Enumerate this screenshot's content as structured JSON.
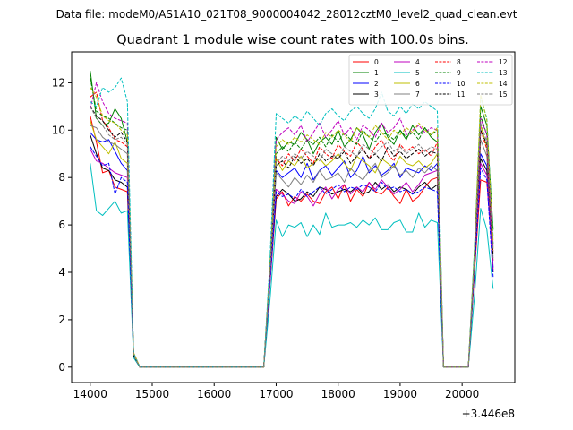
{
  "suptitle": "Data file: modeM0/AS1A10_021T08_9000004042_28012cztM0_level2_quad_clean.evt",
  "chart_data": {
    "type": "line",
    "title": "Quadrant 1 module wise count rates with 100.0s bins.",
    "xlabel": "",
    "ylabel": "",
    "x_offset_label": "+3.446e8",
    "xlim": [
      13700,
      20850
    ],
    "ylim": [
      -0.65,
      13.3
    ],
    "xticks": [
      14000,
      15000,
      16000,
      17000,
      18000,
      19000,
      20000
    ],
    "xtick_labels": [
      "14000",
      "15000",
      "16000",
      "17000",
      "18000",
      "19000",
      "20000"
    ],
    "yticks": [
      0,
      2,
      4,
      6,
      8,
      10,
      12
    ],
    "ytick_labels": [
      "0",
      "2",
      "4",
      "6",
      "8",
      "10",
      "12"
    ],
    "legend_position": "top-right",
    "legend_columns": 4,
    "x": [
      14000,
      14100,
      14200,
      14300,
      14400,
      14500,
      14600,
      14700,
      14800,
      14900,
      15000,
      15100,
      15200,
      15300,
      15400,
      15500,
      15600,
      15700,
      15800,
      15900,
      16000,
      16100,
      16200,
      16300,
      16400,
      16500,
      16600,
      16700,
      16800,
      16900,
      17000,
      17100,
      17200,
      17300,
      17400,
      17500,
      17600,
      17700,
      17800,
      17900,
      18000,
      18100,
      18200,
      18300,
      18400,
      18500,
      18600,
      18700,
      18800,
      18900,
      19000,
      19100,
      19200,
      19300,
      19400,
      19500,
      19600,
      19700,
      19800,
      19900,
      20000,
      20100,
      20200,
      20300,
      20400,
      20500
    ],
    "series": [
      {
        "name": "0",
        "color": "#ff0000",
        "dashed": false,
        "values": [
          10.6,
          9.5,
          8.2,
          8.3,
          7.6,
          7.5,
          7.4,
          0.5,
          0,
          0,
          0,
          0,
          0,
          0,
          0,
          0,
          0,
          0,
          0,
          0,
          0,
          0,
          0,
          0,
          0,
          0,
          0,
          0,
          0,
          3.5,
          7.1,
          7.4,
          6.8,
          7.2,
          7.0,
          7.3,
          7.0,
          6.9,
          7.4,
          7.6,
          7.1,
          7.7,
          7.0,
          7.5,
          7.2,
          7.8,
          7.4,
          7.3,
          7.6,
          7.2,
          6.9,
          7.5,
          7.0,
          7.2,
          7.6,
          7.9,
          8.0,
          0,
          0,
          0,
          0,
          0,
          4.0,
          7.9,
          7.8,
          4.5
        ]
      },
      {
        "name": "1",
        "color": "#008000",
        "dashed": false,
        "values": [
          12.5,
          10.5,
          10.2,
          10.3,
          10.9,
          10.5,
          9.5,
          0.6,
          0,
          0,
          0,
          0,
          0,
          0,
          0,
          0,
          0,
          0,
          0,
          0,
          0,
          0,
          0,
          0,
          0,
          0,
          0,
          0,
          0,
          4.2,
          9.7,
          9.2,
          9.5,
          9.4,
          9.9,
          9.6,
          9.0,
          9.5,
          9.7,
          9.4,
          10.0,
          9.3,
          9.6,
          10.1,
          9.8,
          9.2,
          9.9,
          10.3,
          9.7,
          9.4,
          10.0,
          9.6,
          10.2,
          9.8,
          10.1,
          9.7,
          9.5,
          0,
          0,
          0,
          0,
          0,
          5.0,
          11.0,
          10.2,
          5.8
        ]
      },
      {
        "name": "2",
        "color": "#0000ff",
        "dashed": false,
        "values": [
          9.9,
          9.6,
          9.5,
          9.6,
          9.1,
          8.6,
          8.3,
          0.5,
          0,
          0,
          0,
          0,
          0,
          0,
          0,
          0,
          0,
          0,
          0,
          0,
          0,
          0,
          0,
          0,
          0,
          0,
          0,
          0,
          0,
          3.8,
          8.3,
          8.0,
          8.2,
          8.4,
          8.0,
          8.6,
          7.9,
          8.3,
          8.5,
          8.1,
          8.4,
          8.7,
          8.0,
          8.3,
          8.9,
          8.2,
          8.5,
          8.1,
          8.3,
          8.6,
          8.0,
          8.4,
          8.3,
          8.2,
          8.5,
          8.3,
          8.6,
          0,
          0,
          0,
          0,
          0,
          4.5,
          9.0,
          8.5,
          4.2
        ]
      },
      {
        "name": "3",
        "color": "#000000",
        "dashed": false,
        "values": [
          9.8,
          9.0,
          8.4,
          8.3,
          7.9,
          7.8,
          7.6,
          0.5,
          0,
          0,
          0,
          0,
          0,
          0,
          0,
          0,
          0,
          0,
          0,
          0,
          0,
          0,
          0,
          0,
          0,
          0,
          0,
          0,
          0,
          3.6,
          7.2,
          7.5,
          7.3,
          7.0,
          7.1,
          7.4,
          7.2,
          7.6,
          7.5,
          7.3,
          7.4,
          7.5,
          7.4,
          7.6,
          7.3,
          7.4,
          7.8,
          7.5,
          7.7,
          7.4,
          7.6,
          7.5,
          7.3,
          7.6,
          7.8,
          7.5,
          7.7,
          0,
          0,
          0,
          0,
          0,
          4.2,
          8.8,
          8.3,
          4.0
        ]
      },
      {
        "name": "4",
        "color": "#bf00bf",
        "dashed": false,
        "values": [
          9.2,
          8.7,
          8.6,
          8.4,
          8.2,
          8.1,
          8.0,
          0.5,
          0,
          0,
          0,
          0,
          0,
          0,
          0,
          0,
          0,
          0,
          0,
          0,
          0,
          0,
          0,
          0,
          0,
          0,
          0,
          0,
          0,
          3.5,
          7.5,
          7.3,
          7.0,
          6.9,
          7.4,
          7.2,
          6.8,
          7.3,
          7.6,
          7.1,
          7.5,
          7.7,
          7.3,
          7.6,
          7.4,
          7.8,
          7.5,
          7.9,
          7.6,
          7.3,
          7.5,
          7.8,
          7.4,
          7.7,
          8.1,
          8.2,
          8.3,
          0,
          0,
          0,
          0,
          0,
          4.3,
          8.6,
          8.1,
          4.1
        ]
      },
      {
        "name": "5",
        "color": "#00bfbf",
        "dashed": false,
        "values": [
          8.6,
          6.6,
          6.4,
          6.7,
          7.0,
          6.5,
          6.6,
          0.4,
          0,
          0,
          0,
          0,
          0,
          0,
          0,
          0,
          0,
          0,
          0,
          0,
          0,
          0,
          0,
          0,
          0,
          0,
          0,
          0,
          0,
          2.8,
          6.2,
          5.5,
          6.0,
          5.9,
          6.1,
          5.5,
          6.0,
          5.6,
          6.5,
          5.9,
          6.0,
          6.0,
          6.1,
          5.9,
          6.2,
          6.0,
          6.3,
          5.8,
          5.8,
          6.1,
          6.2,
          5.7,
          5.7,
          6.5,
          5.9,
          6.2,
          6.1,
          0,
          0,
          0,
          0,
          0,
          3.0,
          6.7,
          5.8,
          3.3
        ]
      },
      {
        "name": "6",
        "color": "#bfbf00",
        "dashed": false,
        "values": [
          10.4,
          9.6,
          9.3,
          9.0,
          9.5,
          8.8,
          8.6,
          0.5,
          0,
          0,
          0,
          0,
          0,
          0,
          0,
          0,
          0,
          0,
          0,
          0,
          0,
          0,
          0,
          0,
          0,
          0,
          0,
          0,
          0,
          3.9,
          8.8,
          8.3,
          8.7,
          8.5,
          8.9,
          8.4,
          8.6,
          8.8,
          8.5,
          8.7,
          9.0,
          8.6,
          8.3,
          8.9,
          8.7,
          8.5,
          8.2,
          8.8,
          8.6,
          8.4,
          8.9,
          8.6,
          8.5,
          8.7,
          8.4,
          8.6,
          9.0,
          0,
          0,
          0,
          0,
          0,
          4.5,
          10.2,
          9.3,
          5.0
        ]
      },
      {
        "name": "7",
        "color": "#808080",
        "dashed": false,
        "values": [
          10.2,
          10.1,
          9.7,
          9.5,
          9.4,
          9.2,
          9.0,
          0.5,
          0,
          0,
          0,
          0,
          0,
          0,
          0,
          0,
          0,
          0,
          0,
          0,
          0,
          0,
          0,
          0,
          0,
          0,
          0,
          0,
          0,
          3.8,
          8.2,
          7.9,
          7.6,
          8.0,
          7.7,
          8.1,
          7.8,
          8.3,
          7.9,
          8.0,
          8.2,
          7.8,
          8.4,
          8.1,
          7.9,
          8.3,
          8.6,
          8.0,
          8.2,
          8.5,
          8.1,
          8.3,
          8.0,
          8.4,
          8.2,
          8.5,
          8.3,
          0,
          0,
          0,
          0,
          0,
          4.3,
          9.6,
          8.9,
          4.6
        ]
      },
      {
        "name": "8",
        "color": "#ff0000",
        "dashed": true,
        "values": [
          11.4,
          11.6,
          10.4,
          10.1,
          9.6,
          9.5,
          9.3,
          0.6,
          0,
          0,
          0,
          0,
          0,
          0,
          0,
          0,
          0,
          0,
          0,
          0,
          0,
          0,
          0,
          0,
          0,
          0,
          0,
          0,
          0,
          4.0,
          8.8,
          8.5,
          9.0,
          8.7,
          9.2,
          8.9,
          8.6,
          9.3,
          9.0,
          8.8,
          9.4,
          9.1,
          8.9,
          9.5,
          9.2,
          8.8,
          9.3,
          9.6,
          9.0,
          8.7,
          9.4,
          9.1,
          9.3,
          9.0,
          9.2,
          8.9,
          9.5,
          0,
          0,
          0,
          0,
          0,
          4.4,
          10.0,
          9.2,
          4.8
        ]
      },
      {
        "name": "9",
        "color": "#008000",
        "dashed": true,
        "values": [
          12.2,
          10.8,
          10.6,
          10.5,
          10.3,
          10.1,
          10.0,
          0.6,
          0,
          0,
          0,
          0,
          0,
          0,
          0,
          0,
          0,
          0,
          0,
          0,
          0,
          0,
          0,
          0,
          0,
          0,
          0,
          0,
          0,
          4.3,
          9.0,
          9.3,
          9.1,
          9.5,
          9.2,
          9.6,
          9.4,
          9.7,
          9.3,
          9.8,
          9.5,
          9.9,
          9.6,
          9.4,
          10.0,
          9.7,
          9.5,
          9.9,
          9.8,
          9.6,
          10.0,
          9.7,
          9.9,
          9.6,
          10.1,
          9.8,
          10.0,
          0,
          0,
          0,
          0,
          0,
          4.7,
          10.6,
          9.8,
          5.2
        ]
      },
      {
        "name": "10",
        "color": "#0000ff",
        "dashed": true,
        "values": [
          9.3,
          8.9,
          8.5,
          8.6,
          7.3,
          8.0,
          7.8,
          0.5,
          0,
          0,
          0,
          0,
          0,
          0,
          0,
          0,
          0,
          0,
          0,
          0,
          0,
          0,
          0,
          0,
          0,
          0,
          0,
          0,
          0,
          3.6,
          7.4,
          7.2,
          7.3,
          7.1,
          7.5,
          7.2,
          7.4,
          7.6,
          7.3,
          7.5,
          7.7,
          7.4,
          7.6,
          7.5,
          7.7,
          7.6,
          7.4,
          7.8,
          7.5,
          7.6,
          7.4,
          7.5,
          7.3,
          7.4,
          7.6,
          7.5,
          7.4,
          0,
          0,
          0,
          0,
          0,
          4.1,
          8.4,
          7.9,
          3.8
        ]
      },
      {
        "name": "11",
        "color": "#000000",
        "dashed": true,
        "values": [
          11.0,
          10.6,
          10.4,
          10.0,
          9.7,
          9.9,
          9.5,
          0.5,
          0,
          0,
          0,
          0,
          0,
          0,
          0,
          0,
          0,
          0,
          0,
          0,
          0,
          0,
          0,
          0,
          0,
          0,
          0,
          0,
          0,
          4.0,
          8.5,
          8.7,
          8.4,
          8.9,
          8.6,
          8.8,
          8.5,
          9.0,
          8.7,
          8.9,
          8.8,
          9.1,
          8.6,
          8.9,
          9.2,
          8.8,
          9.0,
          8.7,
          9.3,
          8.9,
          9.1,
          8.8,
          9.0,
          9.2,
          8.9,
          9.1,
          9.0,
          0,
          0,
          0,
          0,
          0,
          4.5,
          10.0,
          9.4,
          4.7
        ]
      },
      {
        "name": "12",
        "color": "#bf00bf",
        "dashed": true,
        "values": [
          10.9,
          12.0,
          11.2,
          10.7,
          10.5,
          10.4,
          10.3,
          0.6,
          0,
          0,
          0,
          0,
          0,
          0,
          0,
          0,
          0,
          0,
          0,
          0,
          0,
          0,
          0,
          0,
          0,
          0,
          0,
          0,
          0,
          4.2,
          9.6,
          9.9,
          10.1,
          9.8,
          10.2,
          9.5,
          9.9,
          10.3,
          9.7,
          10.0,
          10.4,
          9.8,
          10.1,
          9.6,
          10.2,
          10.0,
          9.7,
          10.3,
          9.9,
          10.1,
          10.5,
          9.8,
          10.0,
          10.2,
          9.9,
          10.1,
          10.0,
          0,
          0,
          0,
          0,
          0,
          4.7,
          10.5,
          9.8,
          5.0
        ]
      },
      {
        "name": "13",
        "color": "#00bfbf",
        "dashed": true,
        "values": [
          11.2,
          11.0,
          11.8,
          11.6,
          11.8,
          12.2,
          11.2,
          0.6,
          0,
          0,
          0,
          0,
          0,
          0,
          0,
          0,
          0,
          0,
          0,
          0,
          0,
          0,
          0,
          0,
          0,
          0,
          0,
          0,
          0,
          4.5,
          10.7,
          10.5,
          10.3,
          10.6,
          10.4,
          10.8,
          10.5,
          10.2,
          10.7,
          10.9,
          10.6,
          10.4,
          10.8,
          11.0,
          10.7,
          10.5,
          10.9,
          11.6,
          10.8,
          10.6,
          11.0,
          10.7,
          11.1,
          10.9,
          11.2,
          11.0,
          10.8,
          0,
          0,
          0,
          0,
          0,
          5.0,
          11.4,
          10.5,
          5.5
        ]
      },
      {
        "name": "14",
        "color": "#bfbf00",
        "dashed": true,
        "values": [
          11.8,
          11.4,
          10.6,
          10.4,
          10.3,
          10.0,
          9.8,
          0.6,
          0,
          0,
          0,
          0,
          0,
          0,
          0,
          0,
          0,
          0,
          0,
          0,
          0,
          0,
          0,
          0,
          0,
          0,
          0,
          0,
          0,
          4.1,
          9.3,
          9.6,
          9.4,
          9.7,
          9.5,
          9.8,
          9.6,
          9.4,
          9.9,
          9.7,
          10.0,
          9.8,
          9.5,
          10.1,
          9.9,
          9.7,
          10.2,
          9.9,
          9.6,
          10.0,
          9.8,
          10.1,
          9.9,
          10.3,
          10.0,
          9.8,
          10.1,
          0,
          0,
          0,
          0,
          0,
          4.8,
          11.5,
          10.4,
          5.3
        ]
      },
      {
        "name": "15",
        "color": "#808080",
        "dashed": true,
        "values": [
          11.0,
          10.5,
          10.2,
          9.8,
          9.6,
          9.7,
          9.4,
          0.5,
          0,
          0,
          0,
          0,
          0,
          0,
          0,
          0,
          0,
          0,
          0,
          0,
          0,
          0,
          0,
          0,
          0,
          0,
          0,
          0,
          0,
          3.9,
          8.6,
          8.9,
          8.7,
          9.0,
          8.8,
          9.1,
          8.9,
          8.7,
          9.2,
          9.0,
          8.8,
          9.3,
          9.1,
          8.9,
          9.4,
          9.2,
          9.0,
          9.3,
          9.5,
          9.1,
          9.3,
          9.0,
          9.2,
          9.4,
          9.1,
          9.3,
          9.2,
          0,
          0,
          0,
          0,
          0,
          4.5,
          10.3,
          9.5,
          4.9
        ]
      }
    ]
  }
}
